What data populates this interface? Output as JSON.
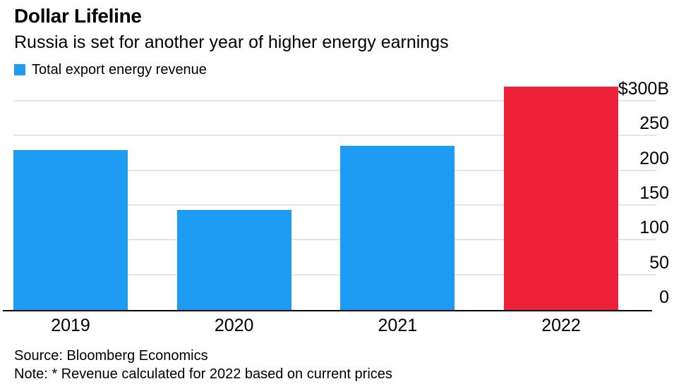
{
  "header": {
    "title": "Dollar Lifeline",
    "subtitle": "Russia is set for another year of higher energy earnings"
  },
  "legend": {
    "label": "Total export energy revenue",
    "swatch_color": "#1E9BF3"
  },
  "chart_data": {
    "type": "bar",
    "title": "Dollar Lifeline",
    "subtitle": "Russia is set for another year of higher energy earnings",
    "categories": [
      "2019",
      "2020",
      "2021",
      "2022"
    ],
    "series": [
      {
        "name": "Total export energy revenue",
        "values": [
          230,
          144,
          236,
          321
        ]
      }
    ],
    "unit": "billion USD",
    "bar_colors": [
      "#1E9BF3",
      "#1E9BF3",
      "#1E9BF3",
      "#ED2139"
    ],
    "ylim": [
      0,
      300
    ],
    "yticks": [
      0,
      50,
      100,
      150,
      200,
      250,
      300
    ],
    "ytick_labels": [
      "0",
      "50",
      "100",
      "150",
      "200",
      "250",
      "$300B"
    ],
    "xlabel": "",
    "ylabel": "",
    "grid": true,
    "y_axis_side": "right",
    "legend_position": "top-left"
  },
  "footer": {
    "source": "Source: Bloomberg Economics",
    "note": "Note: * Revenue calculated for 2022 based on current prices"
  },
  "colors": {
    "blue": "#1E9BF3",
    "red": "#ED2139",
    "gridline": "#E4E4E4",
    "axis": "#000000",
    "text": "#000000",
    "background": "#FFFFFF"
  }
}
